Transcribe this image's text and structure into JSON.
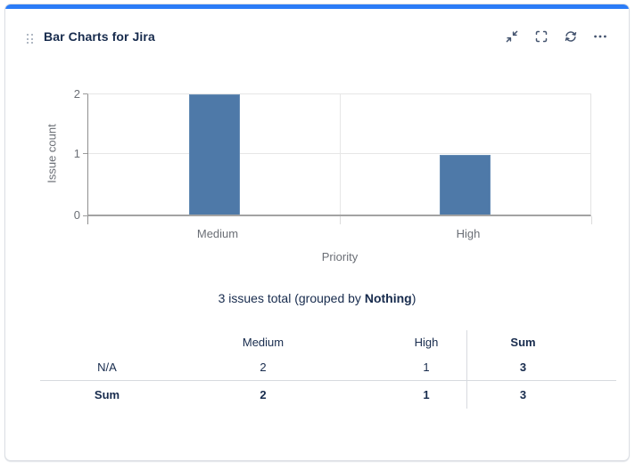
{
  "header": {
    "title": "Bar Charts for Jira"
  },
  "toolbar": {
    "icons": [
      "collapse-icon",
      "fullscreen-icon",
      "refresh-icon",
      "more-icon"
    ]
  },
  "chart_data": {
    "type": "bar",
    "categories": [
      "Medium",
      "High"
    ],
    "values": [
      2,
      1
    ],
    "xlabel": "Priority",
    "ylabel": "Issue count",
    "ylim": [
      0,
      2
    ],
    "yticks": [
      0,
      1,
      2
    ],
    "grid": true,
    "legend_position": "none",
    "bar_color": "#4e79a8"
  },
  "summary": {
    "prefix": "3 issues total (grouped by ",
    "bold": "Nothing",
    "suffix": ")"
  },
  "table": {
    "headers": {
      "rowlabel": "",
      "medium": "Medium",
      "high": "High",
      "sum": "Sum"
    },
    "rows": [
      {
        "label": "N/A",
        "medium": "2",
        "high": "1",
        "sum": "3"
      },
      {
        "label": "Sum",
        "medium": "2",
        "high": "1",
        "sum": "3"
      }
    ]
  },
  "colors": {
    "accent": "#2b7cf7",
    "bar": "#4e79a8",
    "heading_text": "#172b4d",
    "chart_text": "#6b6f76",
    "icon": "#44546f"
  }
}
